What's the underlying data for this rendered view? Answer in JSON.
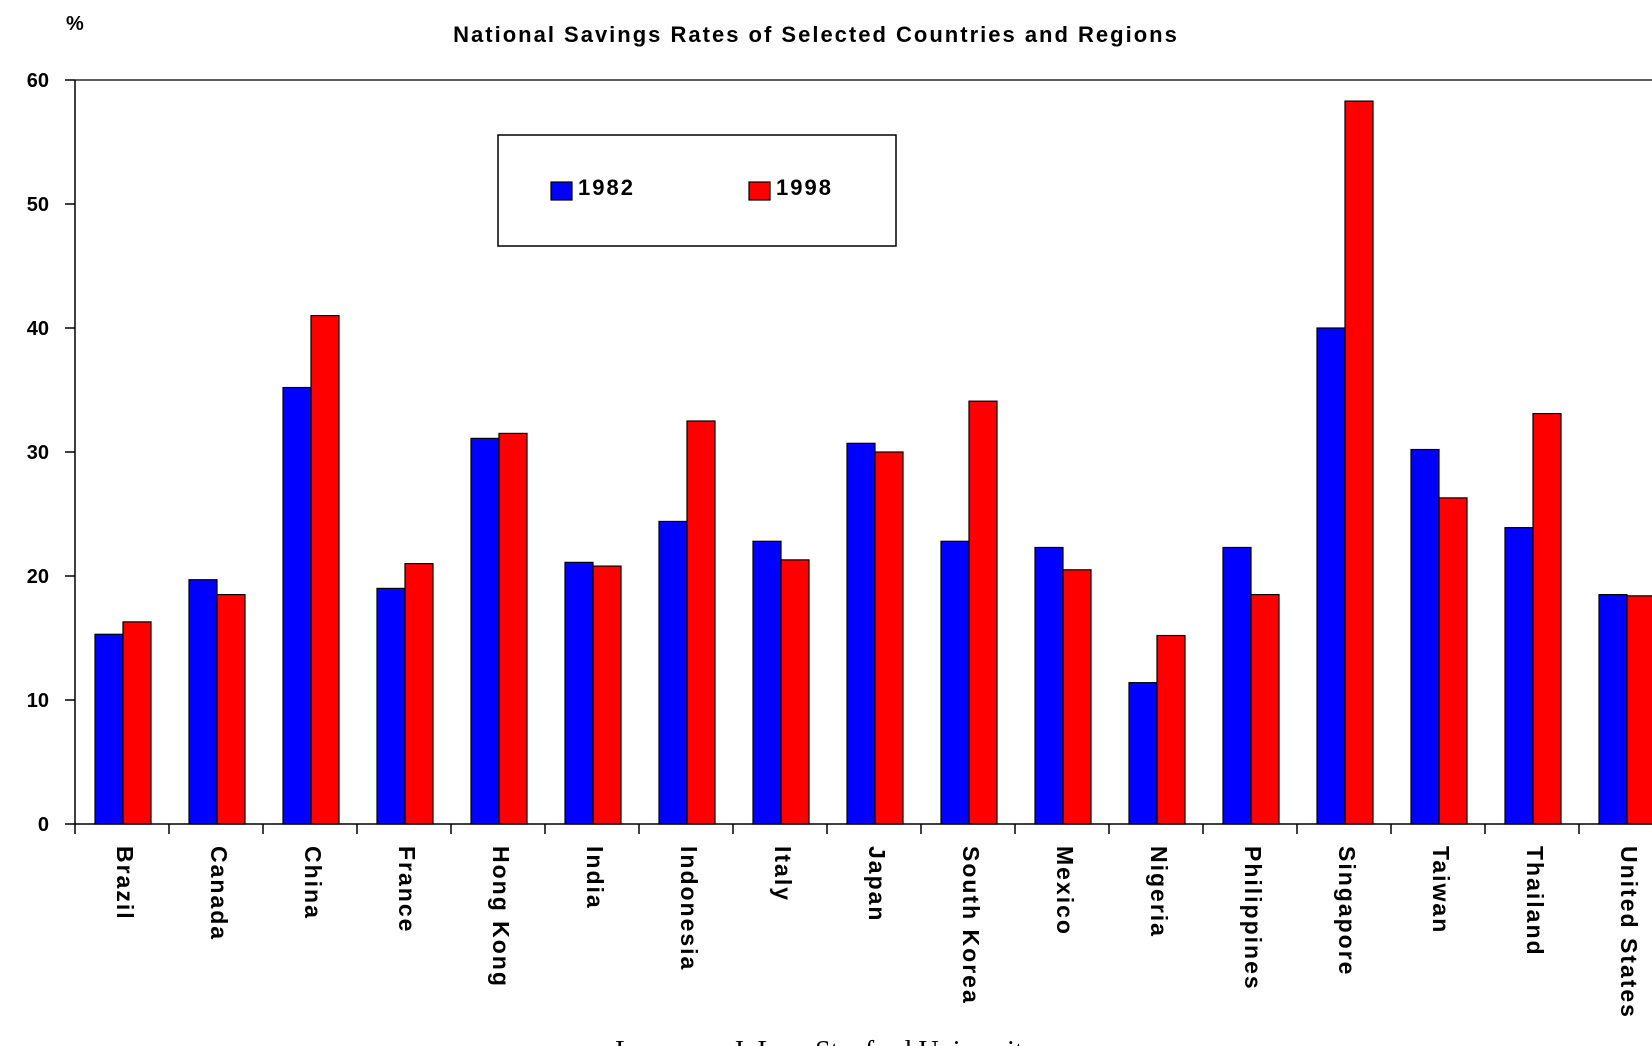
{
  "chart_data": {
    "type": "bar",
    "title": "National Savings Rates of Selected Countries and Regions",
    "ylabel": "%",
    "xlabel": "",
    "ylim": [
      0,
      60
    ],
    "yticks": [
      0,
      10,
      20,
      30,
      40,
      50,
      60
    ],
    "grid": false,
    "legend_position": "top-center",
    "categories": [
      "Brazil",
      "Canada",
      "China",
      "France",
      "Hong Kong",
      "India",
      "Indonesia",
      "Italy",
      "Japan",
      "South Korea",
      "Mexico",
      "Nigeria",
      "Philippines",
      "Singapore",
      "Taiwan",
      "Thailand",
      "United States"
    ],
    "series": [
      {
        "name": "1982",
        "color": "#0000ff",
        "values": [
          15.3,
          19.7,
          35.2,
          19.0,
          31.1,
          21.1,
          24.4,
          22.8,
          30.7,
          22.8,
          22.3,
          11.4,
          22.3,
          40.0,
          30.2,
          23.9,
          18.5
        ]
      },
      {
        "name": "1998",
        "color": "#ff0000",
        "values": [
          16.3,
          18.5,
          41.0,
          21.0,
          31.5,
          20.8,
          32.5,
          21.3,
          30.0,
          34.1,
          20.5,
          15.2,
          18.5,
          58.3,
          26.3,
          33.1,
          18.4
        ]
      }
    ]
  },
  "footer": {
    "credit": "Lawrence J. Lau, Stanford University"
  }
}
